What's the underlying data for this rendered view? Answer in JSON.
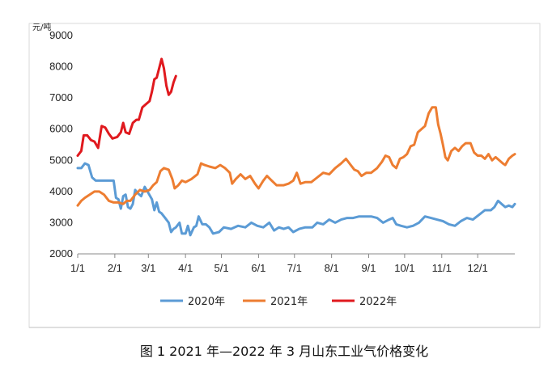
{
  "caption": "图 1  2021 年—2022 年 3 月山东工业气价格变化",
  "chart_data": {
    "type": "line",
    "unit_label": "元/吨",
    "ylim": [
      2000,
      9000
    ],
    "y_ticks": [
      2000,
      3000,
      4000,
      5000,
      6000,
      7000,
      8000,
      9000
    ],
    "x_range": [
      0,
      365
    ],
    "x_ticks": [
      {
        "label": "1/1",
        "day": 0
      },
      {
        "label": "2/1",
        "day": 31
      },
      {
        "label": "3/1",
        "day": 59
      },
      {
        "label": "4/1",
        "day": 90
      },
      {
        "label": "5/1",
        "day": 120
      },
      {
        "label": "6/1",
        "day": 151
      },
      {
        "label": "7/1",
        "day": 181
      },
      {
        "label": "8/1",
        "day": 212
      },
      {
        "label": "9/1",
        "day": 243
      },
      {
        "label": "10/1",
        "day": 273
      },
      {
        "label": "11/1",
        "day": 304
      },
      {
        "label": "12/1",
        "day": 334
      }
    ],
    "grid": false,
    "legend_position": "bottom",
    "series": [
      {
        "name": "2020年",
        "color": "#5b9bd5",
        "points": [
          [
            0,
            4750
          ],
          [
            3,
            4750
          ],
          [
            6,
            4900
          ],
          [
            9,
            4850
          ],
          [
            12,
            4450
          ],
          [
            15,
            4350
          ],
          [
            20,
            4350
          ],
          [
            25,
            4350
          ],
          [
            30,
            4350
          ],
          [
            32,
            3800
          ],
          [
            34,
            3750
          ],
          [
            36,
            3450
          ],
          [
            38,
            3850
          ],
          [
            40,
            3900
          ],
          [
            42,
            3500
          ],
          [
            44,
            3450
          ],
          [
            46,
            3600
          ],
          [
            48,
            4050
          ],
          [
            50,
            3950
          ],
          [
            53,
            3850
          ],
          [
            56,
            4150
          ],
          [
            59,
            3950
          ],
          [
            62,
            3750
          ],
          [
            64,
            3400
          ],
          [
            66,
            3650
          ],
          [
            68,
            3350
          ],
          [
            70,
            3300
          ],
          [
            73,
            3150
          ],
          [
            76,
            3000
          ],
          [
            78,
            2700
          ],
          [
            80,
            2800
          ],
          [
            82,
            2850
          ],
          [
            85,
            3000
          ],
          [
            87,
            2650
          ],
          [
            90,
            2650
          ],
          [
            92,
            2900
          ],
          [
            94,
            2600
          ],
          [
            97,
            2850
          ],
          [
            99,
            2900
          ],
          [
            101,
            3200
          ],
          [
            104,
            2950
          ],
          [
            107,
            2950
          ],
          [
            110,
            2850
          ],
          [
            113,
            2650
          ],
          [
            118,
            2700
          ],
          [
            122,
            2850
          ],
          [
            128,
            2800
          ],
          [
            134,
            2900
          ],
          [
            140,
            2850
          ],
          [
            145,
            3000
          ],
          [
            150,
            2900
          ],
          [
            155,
            2850
          ],
          [
            160,
            3000
          ],
          [
            164,
            2750
          ],
          [
            168,
            2850
          ],
          [
            172,
            2800
          ],
          [
            176,
            2850
          ],
          [
            180,
            2700
          ],
          [
            185,
            2800
          ],
          [
            190,
            2850
          ],
          [
            196,
            2850
          ],
          [
            200,
            3000
          ],
          [
            205,
            2950
          ],
          [
            210,
            3100
          ],
          [
            215,
            3000
          ],
          [
            220,
            3100
          ],
          [
            225,
            3150
          ],
          [
            230,
            3150
          ],
          [
            235,
            3200
          ],
          [
            240,
            3200
          ],
          [
            245,
            3200
          ],
          [
            250,
            3150
          ],
          [
            255,
            3000
          ],
          [
            260,
            3100
          ],
          [
            263,
            3150
          ],
          [
            266,
            2950
          ],
          [
            270,
            2900
          ],
          [
            275,
            2850
          ],
          [
            280,
            2900
          ],
          [
            285,
            3000
          ],
          [
            290,
            3200
          ],
          [
            295,
            3150
          ],
          [
            300,
            3100
          ],
          [
            305,
            3050
          ],
          [
            310,
            2950
          ],
          [
            315,
            2900
          ],
          [
            320,
            3050
          ],
          [
            325,
            3150
          ],
          [
            330,
            3100
          ],
          [
            335,
            3250
          ],
          [
            340,
            3400
          ],
          [
            345,
            3400
          ],
          [
            348,
            3500
          ],
          [
            351,
            3700
          ],
          [
            354,
            3600
          ],
          [
            357,
            3500
          ],
          [
            360,
            3550
          ],
          [
            363,
            3500
          ],
          [
            365,
            3600
          ]
        ]
      },
      {
        "name": "2021年",
        "color": "#ed7d31",
        "points": [
          [
            0,
            3550
          ],
          [
            3,
            3700
          ],
          [
            6,
            3800
          ],
          [
            10,
            3900
          ],
          [
            14,
            4000
          ],
          [
            18,
            4000
          ],
          [
            22,
            3900
          ],
          [
            26,
            3700
          ],
          [
            30,
            3650
          ],
          [
            34,
            3650
          ],
          [
            38,
            3600
          ],
          [
            41,
            3700
          ],
          [
            44,
            3700
          ],
          [
            48,
            3900
          ],
          [
            52,
            4050
          ],
          [
            56,
            4000
          ],
          [
            60,
            4050
          ],
          [
            63,
            4200
          ],
          [
            66,
            4300
          ],
          [
            69,
            4650
          ],
          [
            72,
            4750
          ],
          [
            76,
            4700
          ],
          [
            79,
            4400
          ],
          [
            81,
            4100
          ],
          [
            84,
            4200
          ],
          [
            87,
            4350
          ],
          [
            90,
            4300
          ],
          [
            95,
            4400
          ],
          [
            100,
            4550
          ],
          [
            103,
            4900
          ],
          [
            106,
            4850
          ],
          [
            110,
            4800
          ],
          [
            115,
            4750
          ],
          [
            119,
            4850
          ],
          [
            123,
            4750
          ],
          [
            127,
            4600
          ],
          [
            129,
            4250
          ],
          [
            132,
            4400
          ],
          [
            136,
            4550
          ],
          [
            140,
            4400
          ],
          [
            144,
            4500
          ],
          [
            148,
            4250
          ],
          [
            151,
            4100
          ],
          [
            155,
            4350
          ],
          [
            158,
            4500
          ],
          [
            162,
            4350
          ],
          [
            166,
            4200
          ],
          [
            172,
            4200
          ],
          [
            176,
            4250
          ],
          [
            180,
            4350
          ],
          [
            183,
            4600
          ],
          [
            186,
            4250
          ],
          [
            190,
            4300
          ],
          [
            195,
            4300
          ],
          [
            200,
            4450
          ],
          [
            205,
            4600
          ],
          [
            210,
            4550
          ],
          [
            215,
            4750
          ],
          [
            220,
            4900
          ],
          [
            224,
            5050
          ],
          [
            228,
            4850
          ],
          [
            231,
            4700
          ],
          [
            234,
            4650
          ],
          [
            237,
            4500
          ],
          [
            241,
            4600
          ],
          [
            245,
            4600
          ],
          [
            250,
            4750
          ],
          [
            254,
            4950
          ],
          [
            257,
            5150
          ],
          [
            260,
            5100
          ],
          [
            263,
            4850
          ],
          [
            266,
            4750
          ],
          [
            269,
            5050
          ],
          [
            272,
            5100
          ],
          [
            275,
            5200
          ],
          [
            278,
            5450
          ],
          [
            281,
            5500
          ],
          [
            284,
            5900
          ],
          [
            287,
            6000
          ],
          [
            290,
            6100
          ],
          [
            293,
            6500
          ],
          [
            296,
            6700
          ],
          [
            299,
            6700
          ],
          [
            301,
            6150
          ],
          [
            303,
            5850
          ],
          [
            305,
            5500
          ],
          [
            307,
            5100
          ],
          [
            309,
            5000
          ],
          [
            312,
            5300
          ],
          [
            315,
            5400
          ],
          [
            318,
            5300
          ],
          [
            321,
            5450
          ],
          [
            324,
            5550
          ],
          [
            328,
            5550
          ],
          [
            331,
            5250
          ],
          [
            334,
            5150
          ],
          [
            337,
            5150
          ],
          [
            340,
            5050
          ],
          [
            343,
            5200
          ],
          [
            346,
            5000
          ],
          [
            349,
            5100
          ],
          [
            352,
            5000
          ],
          [
            355,
            4900
          ],
          [
            357,
            4850
          ],
          [
            360,
            5050
          ],
          [
            363,
            5150
          ],
          [
            365,
            5200
          ]
        ]
      },
      {
        "name": "2022年",
        "color": "#e0191e",
        "points": [
          [
            0,
            5150
          ],
          [
            3,
            5300
          ],
          [
            5,
            5800
          ],
          [
            8,
            5800
          ],
          [
            11,
            5650
          ],
          [
            14,
            5600
          ],
          [
            17,
            5400
          ],
          [
            20,
            6100
          ],
          [
            23,
            6050
          ],
          [
            26,
            5850
          ],
          [
            29,
            5700
          ],
          [
            33,
            5750
          ],
          [
            36,
            5900
          ],
          [
            38,
            6200
          ],
          [
            40,
            5900
          ],
          [
            43,
            5850
          ],
          [
            46,
            6200
          ],
          [
            49,
            6300
          ],
          [
            51,
            6300
          ],
          [
            54,
            6700
          ],
          [
            57,
            6800
          ],
          [
            60,
            6900
          ],
          [
            62,
            7200
          ],
          [
            64,
            7600
          ],
          [
            66,
            7650
          ],
          [
            68,
            7950
          ],
          [
            70,
            8250
          ],
          [
            72,
            7950
          ],
          [
            74,
            7400
          ],
          [
            76,
            7100
          ],
          [
            78,
            7200
          ],
          [
            80,
            7500
          ],
          [
            82,
            7700
          ]
        ]
      }
    ]
  }
}
